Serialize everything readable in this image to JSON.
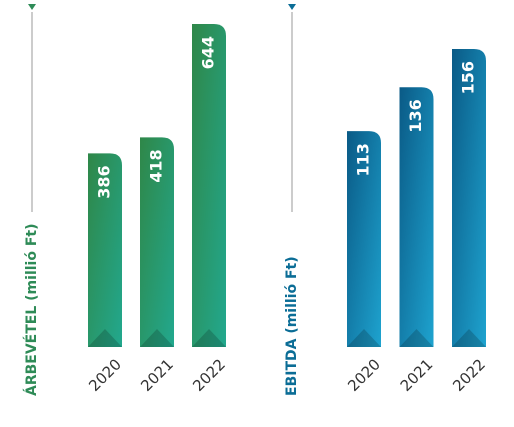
{
  "chart_data": [
    {
      "type": "bar",
      "axis_label": "ÁRBEVÉTEL (millió Ft)",
      "categories": [
        "2020",
        "2021",
        "2022"
      ],
      "values": [
        386,
        418,
        644
      ],
      "color": "#2e8b57",
      "gradient": [
        "#2f8748",
        "#22a88e"
      ]
    },
    {
      "type": "bar",
      "axis_label": "EBITDA (millió Ft)",
      "categories": [
        "2020",
        "2021",
        "2022"
      ],
      "values": [
        113,
        136,
        156
      ],
      "color": "#0b6d96",
      "gradient": [
        "#0a5a86",
        "#1ea3cf"
      ]
    }
  ]
}
